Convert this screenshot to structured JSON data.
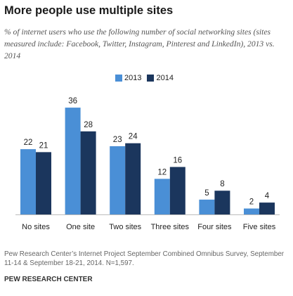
{
  "header": {
    "title": "More people use multiple sites",
    "subtitle": "% of internet users who use the following  number of social networking sites (sites measured include: Facebook, Twitter, Instagram, Pinterest and LinkedIn), 2013 vs. 2014"
  },
  "footer": {
    "source": "Pew Research Center’s Internet Project September Combined Omnibus Survey, September 11-14 & September 18-21, 2014. N=1,597.",
    "org": "PEW RESEARCH CENTER"
  },
  "chart_data": {
    "type": "bar",
    "categories": [
      "No sites",
      "One site",
      "Two sites",
      "Three sites",
      "Four sites",
      "Five sites"
    ],
    "series": [
      {
        "name": "2013",
        "values": [
          22,
          36,
          23,
          12,
          5,
          2
        ],
        "color": "#4a8fd6"
      },
      {
        "name": "2014",
        "values": [
          21,
          28,
          24,
          16,
          8,
          4
        ],
        "color": "#1b365d"
      }
    ],
    "title": "More people use multiple sites",
    "xlabel": "",
    "ylabel": "",
    "ylim": [
      0,
      36
    ],
    "legend": "top-center",
    "grid": false
  }
}
